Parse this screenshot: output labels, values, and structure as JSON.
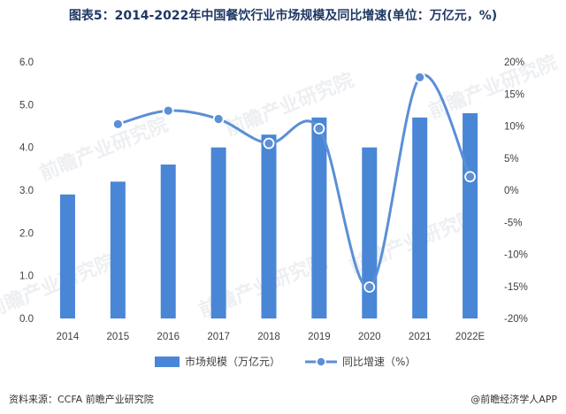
{
  "title": "图表5：2014-2022年中国餐饮行业市场规模及同比增速(单位：万亿元，%)",
  "source": "资料来源：CCFA 前瞻产业研究院",
  "brand": "@前瞻经济学人APP",
  "watermark": "前瞻产业研究院",
  "colors": {
    "bar": "#4a86d6",
    "line": "#5b8fd6",
    "marker_edge": "#ffffff",
    "title": "#1f3864"
  },
  "chart_data": {
    "type": "bar",
    "categories": [
      "2014",
      "2015",
      "2016",
      "2017",
      "2018",
      "2019",
      "2020",
      "2021",
      "2022E"
    ],
    "series": [
      {
        "name": "市场规模（万亿元）",
        "type": "bar",
        "axis": "left",
        "values": [
          2.9,
          3.2,
          3.6,
          4.0,
          4.3,
          4.7,
          4.0,
          4.7,
          4.8
        ]
      },
      {
        "name": "同比增速（%）",
        "type": "line",
        "axis": "right",
        "smooth": true,
        "values": [
          null,
          10.3,
          12.4,
          11.1,
          7.3,
          9.6,
          -15.1,
          17.6,
          2.1
        ]
      }
    ],
    "y_left": {
      "min": 0,
      "max": 6,
      "ticks": [
        "0.0",
        "1.0",
        "2.0",
        "3.0",
        "4.0",
        "5.0",
        "6.0"
      ]
    },
    "y_right": {
      "min": -20,
      "max": 20,
      "ticks": [
        "-20%",
        "-15%",
        "-10%",
        "-5%",
        "0%",
        "5%",
        "10%",
        "15%",
        "20%"
      ]
    },
    "legend_position": "bottom",
    "grid": false
  }
}
